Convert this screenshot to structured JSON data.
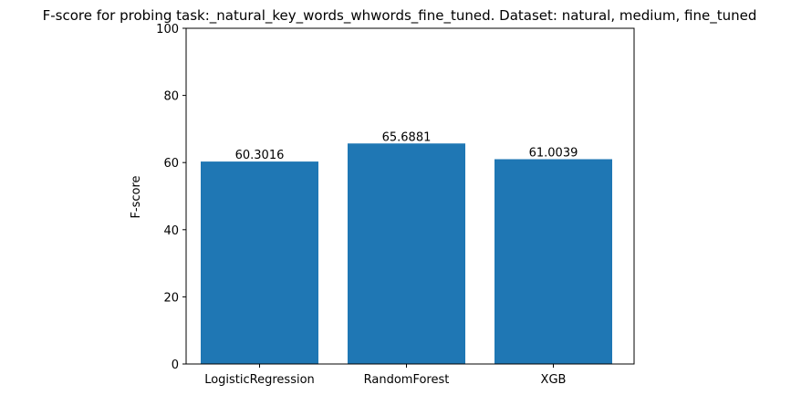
{
  "chart_data": {
    "type": "bar",
    "title": "F-score for probing task:_natural_key_words_whwords_fine_tuned. Dataset: natural, medium, fine_tuned",
    "xlabel": "",
    "ylabel": "F-score",
    "categories": [
      "LogisticRegression",
      "RandomForest",
      "XGB"
    ],
    "values": [
      60.3016,
      65.6881,
      61.0039
    ],
    "value_labels": [
      "60.3016",
      "65.6881",
      "61.0039"
    ],
    "ylim": [
      0,
      100
    ],
    "yticks": [
      0,
      20,
      40,
      60,
      80,
      100
    ],
    "grid": false,
    "bar_color": "#1f77b4"
  }
}
